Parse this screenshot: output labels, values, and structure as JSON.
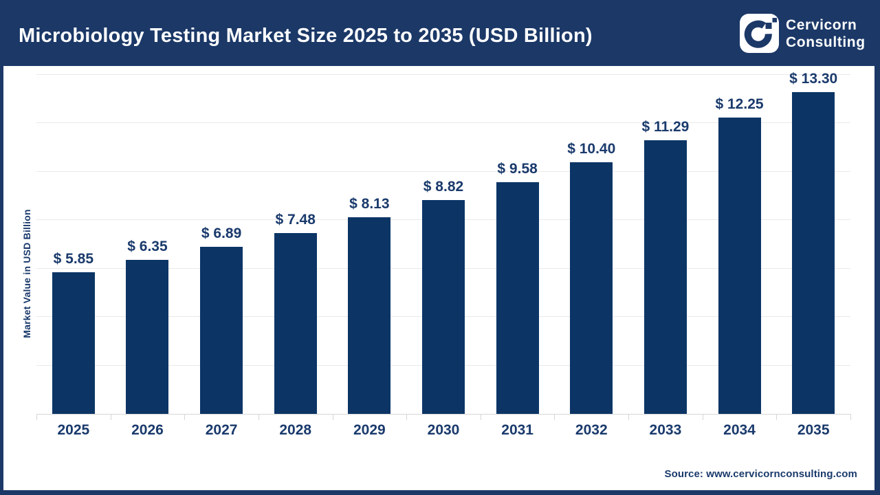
{
  "header": {
    "title": "Microbiology Testing Market Size 2025 to 2035 (USD Billion)",
    "brand": {
      "line1": "Cervicorn",
      "line2": "Consulting"
    }
  },
  "chart_data": {
    "type": "bar",
    "title": "Microbiology Testing Market Size 2025 to 2035 (USD Billion)",
    "categories": [
      "2025",
      "2026",
      "2027",
      "2028",
      "2029",
      "2030",
      "2031",
      "2032",
      "2033",
      "2034",
      "2035"
    ],
    "values": [
      5.85,
      6.35,
      6.89,
      7.48,
      8.13,
      8.82,
      9.58,
      10.4,
      11.29,
      12.25,
      13.3
    ],
    "value_prefix": "$ ",
    "value_decimals": 2,
    "xlabel": "",
    "ylabel": "Market Value in USD Billion",
    "ylim": [
      0,
      14
    ],
    "grid_step": 2,
    "grid": true,
    "legend": false,
    "bar_color": "#0c3566",
    "label_color": "#1a3a6c",
    "gridline_color": "#e9e9e9"
  },
  "footer": {
    "source": "Source: www.cervicornconsulting.com"
  },
  "colors": {
    "header_bg": "#1b3867",
    "frame": "#1b3867",
    "plot_bg": "#ffffff",
    "text_navy": "#1a3a6c",
    "title_text": "#ffffff"
  }
}
